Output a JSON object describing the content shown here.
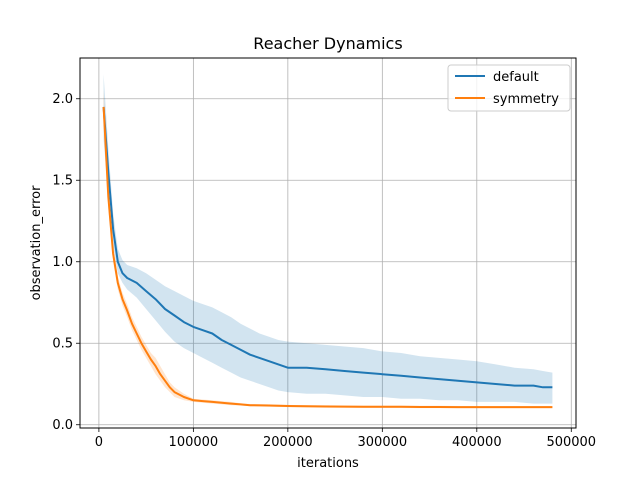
{
  "chart_data": {
    "type": "line",
    "title": "Reacher Dynamics",
    "xlabel": "iterations",
    "ylabel": "observation_error",
    "xlim": [
      -20000,
      505000
    ],
    "ylim": [
      -0.02,
      2.25
    ],
    "xticks": [
      0,
      100000,
      200000,
      300000,
      400000,
      500000
    ],
    "xtick_labels": [
      "0",
      "100000",
      "200000",
      "300000",
      "400000",
      "500000"
    ],
    "yticks": [
      0.0,
      0.5,
      1.0,
      1.5,
      2.0
    ],
    "ytick_labels": [
      "0.0",
      "0.5",
      "1.0",
      "1.5",
      "2.0"
    ],
    "grid": true,
    "legend_position": "top-right",
    "series": [
      {
        "name": "default",
        "color": "#1f77b4",
        "x": [
          5000,
          10000,
          15000,
          20000,
          25000,
          30000,
          40000,
          50000,
          60000,
          70000,
          80000,
          90000,
          100000,
          110000,
          120000,
          130000,
          140000,
          150000,
          160000,
          170000,
          180000,
          190000,
          200000,
          220000,
          240000,
          260000,
          280000,
          300000,
          320000,
          340000,
          360000,
          380000,
          400000,
          420000,
          440000,
          460000,
          470000,
          480000
        ],
        "values": [
          1.95,
          1.55,
          1.2,
          1.0,
          0.93,
          0.9,
          0.87,
          0.82,
          0.77,
          0.71,
          0.67,
          0.63,
          0.6,
          0.58,
          0.56,
          0.52,
          0.49,
          0.46,
          0.43,
          0.41,
          0.39,
          0.37,
          0.35,
          0.35,
          0.34,
          0.33,
          0.32,
          0.31,
          0.3,
          0.29,
          0.28,
          0.27,
          0.26,
          0.25,
          0.24,
          0.24,
          0.23,
          0.23
        ],
        "lower": [
          1.75,
          1.4,
          1.1,
          0.93,
          0.87,
          0.83,
          0.78,
          0.71,
          0.64,
          0.57,
          0.51,
          0.47,
          0.44,
          0.41,
          0.38,
          0.35,
          0.32,
          0.29,
          0.27,
          0.25,
          0.23,
          0.21,
          0.2,
          0.19,
          0.19,
          0.18,
          0.17,
          0.17,
          0.16,
          0.16,
          0.15,
          0.15,
          0.14,
          0.14,
          0.14,
          0.13,
          0.13,
          0.13
        ],
        "upper": [
          2.15,
          1.7,
          1.3,
          1.08,
          1.01,
          0.98,
          0.96,
          0.93,
          0.89,
          0.85,
          0.82,
          0.79,
          0.76,
          0.74,
          0.72,
          0.69,
          0.66,
          0.62,
          0.59,
          0.56,
          0.54,
          0.52,
          0.51,
          0.5,
          0.49,
          0.48,
          0.47,
          0.45,
          0.44,
          0.42,
          0.41,
          0.4,
          0.39,
          0.37,
          0.35,
          0.34,
          0.33,
          0.32
        ]
      },
      {
        "name": "symmetry",
        "color": "#ff7f0e",
        "x": [
          5000,
          10000,
          15000,
          20000,
          25000,
          30000,
          35000,
          40000,
          45000,
          50000,
          55000,
          60000,
          65000,
          70000,
          75000,
          80000,
          90000,
          100000,
          110000,
          120000,
          130000,
          140000,
          150000,
          160000,
          180000,
          200000,
          220000,
          240000,
          260000,
          280000,
          300000,
          320000,
          340000,
          360000,
          380000,
          400000,
          420000,
          440000,
          460000,
          480000
        ],
        "values": [
          1.95,
          1.4,
          1.05,
          0.87,
          0.77,
          0.7,
          0.62,
          0.56,
          0.5,
          0.45,
          0.4,
          0.36,
          0.31,
          0.27,
          0.23,
          0.2,
          0.17,
          0.15,
          0.145,
          0.14,
          0.135,
          0.13,
          0.125,
          0.12,
          0.118,
          0.115,
          0.113,
          0.112,
          0.111,
          0.11,
          0.11,
          0.11,
          0.109,
          0.109,
          0.108,
          0.108,
          0.108,
          0.108,
          0.108,
          0.108
        ],
        "lower": [
          1.85,
          1.33,
          1.0,
          0.83,
          0.73,
          0.66,
          0.58,
          0.52,
          0.46,
          0.41,
          0.36,
          0.31,
          0.27,
          0.23,
          0.2,
          0.17,
          0.15,
          0.14,
          0.135,
          0.13,
          0.125,
          0.12,
          0.118,
          0.113,
          0.11,
          0.108,
          0.106,
          0.105,
          0.104,
          0.103,
          0.103,
          0.103,
          0.102,
          0.102,
          0.101,
          0.101,
          0.101,
          0.101,
          0.101,
          0.101
        ],
        "upper": [
          2.05,
          1.47,
          1.1,
          0.91,
          0.81,
          0.74,
          0.66,
          0.6,
          0.54,
          0.49,
          0.44,
          0.41,
          0.36,
          0.31,
          0.26,
          0.23,
          0.19,
          0.16,
          0.155,
          0.15,
          0.145,
          0.14,
          0.132,
          0.127,
          0.125,
          0.122,
          0.12,
          0.119,
          0.118,
          0.117,
          0.117,
          0.117,
          0.116,
          0.116,
          0.115,
          0.115,
          0.115,
          0.115,
          0.115,
          0.115
        ]
      }
    ]
  }
}
